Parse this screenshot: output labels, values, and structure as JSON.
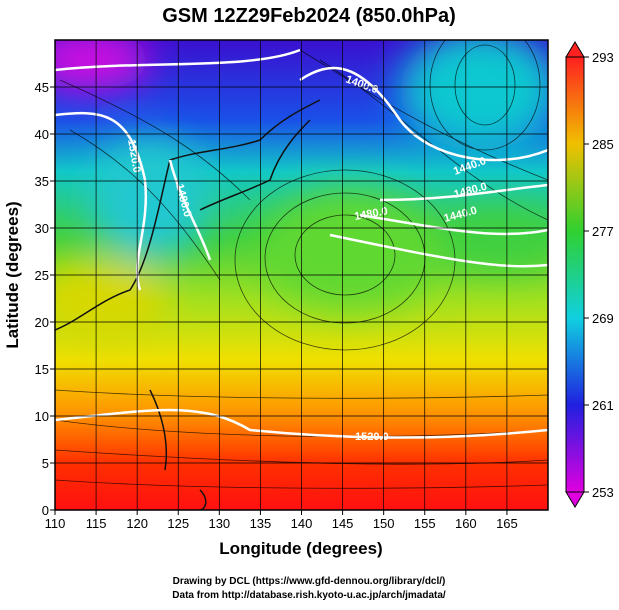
{
  "title": "GSM 12Z29Feb2024 (850.0hPa)",
  "x_axis": {
    "label": "Longitude (degrees)",
    "xlim": [
      110,
      170
    ],
    "ticks": [
      110,
      115,
      120,
      125,
      130,
      135,
      140,
      145,
      150,
      155,
      160,
      165
    ]
  },
  "y_axis": {
    "label": "Latitude  (degrees)",
    "ylim": [
      0,
      50
    ],
    "ticks": [
      0,
      5,
      10,
      15,
      20,
      25,
      30,
      35,
      40,
      45
    ]
  },
  "colorbar": {
    "lim": [
      253,
      293
    ],
    "ticks": [
      253,
      261,
      269,
      277,
      285,
      293
    ]
  },
  "contour_labels": [
    "1400.0",
    "1520.0",
    "1480.0",
    "1440.0",
    "1480.0",
    "1440.0",
    "1480.0",
    "1520.0"
  ],
  "credits": [
    "Drawing by DCL (https://www.gfd-dennou.org/library/dcl/)",
    "Data from http://database.rish.kyoto-u.ac.jp/arch/jmadata/"
  ]
}
